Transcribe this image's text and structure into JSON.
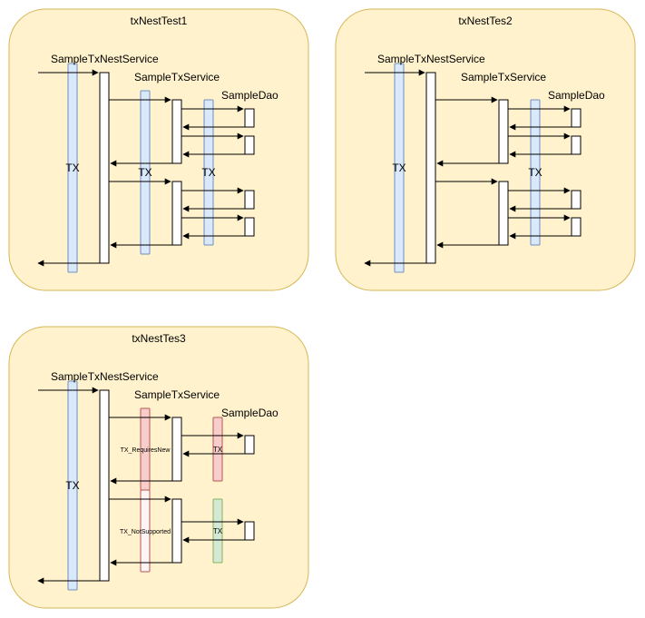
{
  "colors": {
    "panel_fill": "#fff2cc",
    "panel_stroke": "#d6b656",
    "tx_fill": "#dae8fc",
    "tx_stroke": "#6c8ebf",
    "tx_new_fill": "#f8cecc",
    "tx_new_stroke": "#b85450",
    "tx_suspended_fill": "#fdf5f5",
    "tx_suspended_stroke": "#b85450",
    "tx_none_fill": "#d5e8d4",
    "tx_none_stroke": "#82b366"
  },
  "panels": {
    "p1": {
      "title": "txNestTest1",
      "nest_service": "SampleTxNestService",
      "tx_service": "SampleTxService",
      "dao": "SampleDao",
      "tx_outer": "TX",
      "tx_service_label": "TX",
      "tx_dao_label": "TX"
    },
    "p2": {
      "title": "txNestTes2",
      "nest_service": "SampleTxNestService",
      "tx_service": "SampleTxService",
      "dao": "SampleDao",
      "tx_outer": "TX",
      "tx_dao_label": "TX"
    },
    "p3": {
      "title": "txNestTes3",
      "nest_service": "SampleTxNestService",
      "tx_service": "SampleTxService",
      "dao": "SampleDao",
      "tx_outer": "TX",
      "tx_requires_new": "TX_RequiresNew",
      "tx_not_supported": "TX_NotSupported",
      "tx_dao_label_1": "TX",
      "tx_dao_label_2": "TX"
    }
  }
}
